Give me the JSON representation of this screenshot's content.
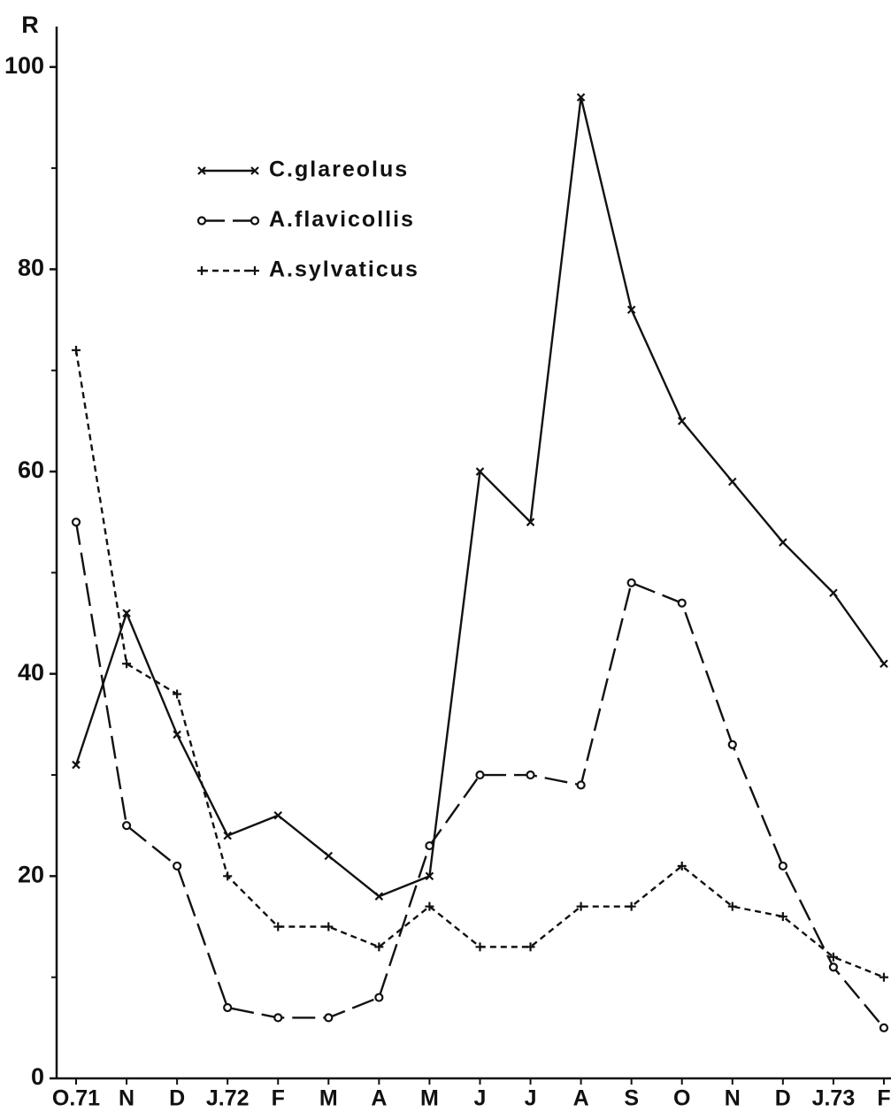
{
  "chart_data": {
    "type": "line",
    "y_label": "R",
    "categories": [
      "O.71",
      "N",
      "D",
      "J.72",
      "F",
      "M",
      "A",
      "M",
      "J",
      "J",
      "A",
      "S",
      "O",
      "N",
      "D",
      "J.73",
      "F"
    ],
    "ylim": [
      0,
      104
    ],
    "yticks": [
      0,
      20,
      40,
      60,
      80,
      100
    ],
    "yticks_minor": [
      10,
      30,
      50,
      70,
      90
    ],
    "series": [
      {
        "name": "C.glareolus",
        "color": "#111111",
        "dash": "solid",
        "marker": "x",
        "values": [
          31,
          46,
          34,
          24,
          26,
          22,
          18,
          20,
          60,
          55,
          97,
          76,
          65,
          59,
          53,
          48,
          41
        ]
      },
      {
        "name": "A.flavicollis",
        "color": "#111111",
        "dash": "long",
        "marker": "circle",
        "values": [
          55,
          25,
          21,
          7,
          6,
          6,
          8,
          23,
          30,
          30,
          29,
          49,
          47,
          33,
          21,
          11,
          5
        ]
      },
      {
        "name": "A.sylvaticus",
        "color": "#111111",
        "dash": "short",
        "marker": "plus",
        "values": [
          72,
          41,
          38,
          20,
          15,
          15,
          13,
          17,
          13,
          13,
          17,
          17,
          21,
          17,
          16,
          12,
          10
        ]
      }
    ]
  }
}
